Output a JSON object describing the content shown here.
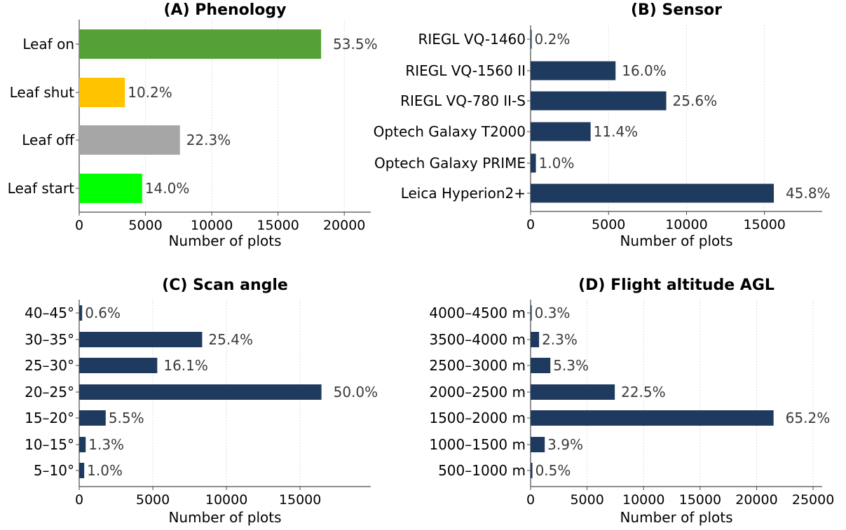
{
  "chart_data": [
    {
      "type": "bar",
      "orientation": "horizontal",
      "title": "(A) Phenology",
      "xlabel": "Number of plots",
      "categories": [
        "Leaf on",
        "Leaf shut",
        "Leaf off",
        "Leaf start"
      ],
      "values": [
        18250,
        3450,
        7600,
        4750
      ],
      "labels": [
        "53.5%",
        "10.2%",
        "22.3%",
        "14.0%"
      ],
      "colors": [
        "#56a038",
        "#ffc300",
        "#a6a6a6",
        "#00ff00"
      ],
      "xlim": [
        0,
        22000
      ],
      "xticks": [
        0,
        5000,
        10000,
        15000,
        20000
      ],
      "xtick_labels": [
        "0",
        "5000",
        "10000",
        "15000",
        "20000"
      ],
      "grid": "x dotted"
    },
    {
      "type": "bar",
      "orientation": "horizontal",
      "title": "(B) Sensor",
      "xlabel": "Number of plots",
      "categories": [
        "RIEGL VQ-1460",
        "RIEGL VQ-1560 II",
        "RIEGL VQ-780 II-S",
        "Optech Galaxy T2000",
        "Optech Galaxy PRIME",
        "Leica Hyperion2+"
      ],
      "values": [
        70,
        5450,
        8700,
        3850,
        340,
        15600
      ],
      "labels": [
        "0.2%",
        "16.0%",
        "25.6%",
        "11.4%",
        "1.0%",
        "45.8%"
      ],
      "colors": [
        "#1f3a5f"
      ],
      "xlim": [
        0,
        18700
      ],
      "xticks": [
        0,
        5000,
        10000,
        15000
      ],
      "xtick_labels": [
        "0",
        "5000",
        "10000",
        "15000"
      ],
      "grid": "x dotted"
    },
    {
      "type": "bar",
      "orientation": "horizontal",
      "title": "(C) Scan angle",
      "xlabel": "Number of plots",
      "categories": [
        "40–45°",
        "30–35°",
        "25–30°",
        "20–25°",
        "15–20°",
        "10–15°",
        "5–10°"
      ],
      "values": [
        200,
        8350,
        5300,
        16450,
        1800,
        440,
        340
      ],
      "labels": [
        "0.6%",
        "25.4%",
        "16.1%",
        "50.0%",
        "5.5%",
        "1.3%",
        "1.0%"
      ],
      "colors": [
        "#1f3a5f"
      ],
      "xlim": [
        0,
        19800
      ],
      "xticks": [
        0,
        5000,
        10000,
        15000
      ],
      "xtick_labels": [
        "0",
        "5000",
        "10000",
        "15000"
      ],
      "grid": "x dotted"
    },
    {
      "type": "bar",
      "orientation": "horizontal",
      "title": "(D) Flight altitude AGL",
      "xlabel": "Number of plots",
      "categories": [
        "4000–4500 m",
        "3500–4000 m",
        "2500–3000 m",
        "2000–2500 m",
        "1500–2000 m",
        "1000–1500 m",
        "500–1000 m"
      ],
      "values": [
        100,
        750,
        1750,
        7450,
        21500,
        1250,
        160
      ],
      "labels": [
        "0.3%",
        "2.3%",
        "5.3%",
        "22.5%",
        "65.2%",
        "3.9%",
        "0.5%"
      ],
      "colors": [
        "#1f3a5f"
      ],
      "xlim": [
        0,
        25800
      ],
      "xticks": [
        0,
        5000,
        10000,
        15000,
        20000,
        25000
      ],
      "xtick_labels": [
        "0",
        "5000",
        "10000",
        "15000",
        "20000",
        "25000"
      ],
      "grid": "x dotted"
    }
  ]
}
